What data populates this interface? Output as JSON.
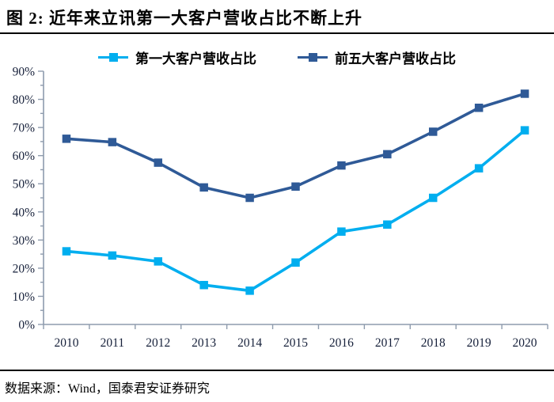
{
  "header": {
    "title": "图 2:  近年来立讯第一大客户营收占比不断上升"
  },
  "footer": {
    "source": "数据来源：Wind，国泰君安证券研究"
  },
  "colors": {
    "series_first_customer": "#00AEEF",
    "series_top5_customers": "#2F5A97",
    "axis": "#8E9BAD",
    "tick_text": "#16203A",
    "divider": "#000000"
  },
  "chart_data": {
    "type": "line",
    "title": "近年来立讯第一大客户营收占比不断上升",
    "categories": [
      "2010",
      "2011",
      "2012",
      "2013",
      "2014",
      "2015",
      "2016",
      "2017",
      "2018",
      "2019",
      "2020"
    ],
    "series": [
      {
        "name": "第一大客户营收占比",
        "color": "#00AEEF",
        "values": [
          26,
          24.5,
          22.4,
          14,
          12,
          22,
          33,
          35.5,
          45,
          55.5,
          69
        ]
      },
      {
        "name": "前五大客户营收占比",
        "color": "#2F5A97",
        "values": [
          66,
          64.8,
          57.5,
          48.7,
          45,
          49,
          56.5,
          60.5,
          68.5,
          77,
          82
        ]
      }
    ],
    "xlabel": "",
    "ylabel": "",
    "ylim": [
      0,
      90
    ],
    "y_tick_step": 10,
    "y_minor_tick_step": 5,
    "y_tick_labels": [
      "0%",
      "10%",
      "20%",
      "30%",
      "40%",
      "50%",
      "60%",
      "70%",
      "80%",
      "90%"
    ],
    "y_tick_format": "percent",
    "grid": false,
    "legend_position": "top",
    "marker": "square"
  }
}
